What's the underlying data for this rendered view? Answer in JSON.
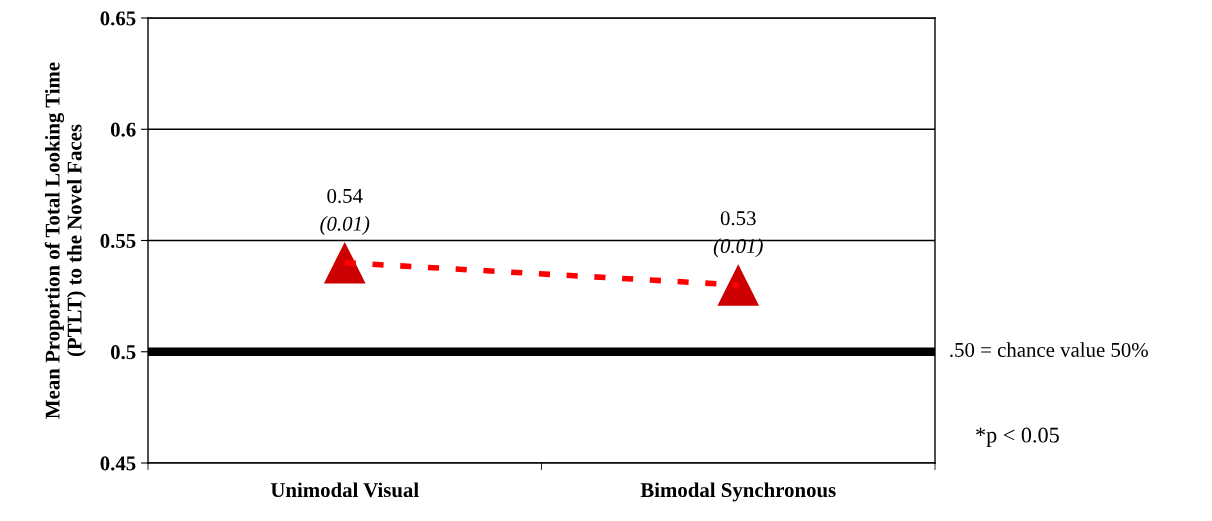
{
  "chart_data": {
    "type": "line",
    "ylabel": "Mean Proportion of Total Looking Time\n(PTLT) to the Novel Faces",
    "categories": [
      "Unimodal Visual",
      "Bimodal Synchronous"
    ],
    "series": [
      {
        "color": "#ff0000",
        "values": [
          0.54,
          0.53
        ],
        "value_labels": [
          "0.54\n(0.01)",
          "0.53\n(0.01)"
        ]
      }
    ],
    "ylim": [
      0.45,
      0.65
    ],
    "yticks": [
      0.45,
      0.5,
      0.55,
      0.6,
      0.65
    ],
    "grid": "y",
    "marker": "triangle",
    "line_style": "dashed",
    "ref_lines": [
      {
        "axis": "y",
        "value": 0.5,
        "label": ".50 = chance value 50%",
        "color": "#000000"
      }
    ],
    "annotations": [
      "*p < 0.05"
    ]
  }
}
